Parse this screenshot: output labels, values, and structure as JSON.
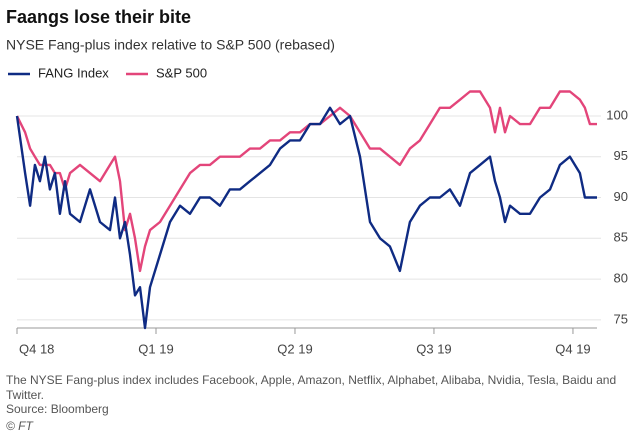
{
  "chart_data": {
    "type": "line",
    "title": "Faangs lose their bite",
    "subtitle": "NYSE Fang-plus index relative to S&P 500 (rebased)",
    "x": [
      0,
      0.058,
      0.094,
      0.129,
      0.165,
      0.201,
      0.237,
      0.273,
      0.309,
      0.345,
      0.381,
      0.453,
      0.525,
      0.597,
      0.669,
      0.705,
      0.741,
      0.777,
      0.813,
      0.849,
      0.885,
      0.921,
      0.957,
      1.029,
      1.101,
      1.173,
      1.245,
      1.317,
      1.388,
      1.46,
      1.532,
      1.604,
      1.676,
      1.748,
      1.82,
      1.892,
      1.964,
      2.036,
      2.108,
      2.18,
      2.252,
      2.324,
      2.396,
      2.468,
      2.54,
      2.612,
      2.683,
      2.755,
      2.827,
      2.899,
      2.971,
      3.043,
      3.115,
      3.187,
      3.259,
      3.331,
      3.403,
      3.439,
      3.475,
      3.511,
      3.547,
      3.619,
      3.691,
      3.763,
      3.835,
      3.906,
      3.978,
      4.05,
      4.086,
      4.122,
      4.173
    ],
    "series": [
      {
        "name": "FANG Index",
        "color": "#0f2b83",
        "values": [
          100,
          93,
          89,
          94,
          92,
          95,
          91,
          93,
          88,
          92,
          88,
          87,
          91,
          87,
          86,
          90,
          85,
          87,
          83,
          78,
          79,
          74,
          79,
          83,
          87,
          89,
          88,
          90,
          90,
          89,
          91,
          91,
          92,
          93,
          94,
          96,
          97,
          97,
          99,
          99,
          101,
          99,
          100,
          95,
          87,
          85,
          84,
          81,
          87,
          89,
          90,
          90,
          91,
          89,
          93,
          94,
          95,
          92,
          90,
          87,
          89,
          88,
          88,
          90,
          91,
          94,
          95,
          93,
          90,
          90,
          90
        ]
      },
      {
        "name": "S&P 500",
        "color": "#e3457a",
        "values": [
          100,
          98,
          96,
          95,
          94,
          94,
          94,
          93,
          93,
          91,
          93,
          94,
          93,
          92,
          94,
          95,
          92,
          86,
          88,
          85,
          81,
          84,
          86,
          87,
          89,
          91,
          93,
          94,
          94,
          95,
          95,
          95,
          96,
          96,
          97,
          97,
          98,
          98,
          99,
          99,
          100,
          101,
          100,
          98,
          96,
          96,
          95,
          94,
          96,
          97,
          99,
          101,
          101,
          102,
          103,
          103,
          101,
          98,
          101,
          98,
          100,
          99,
          99,
          101,
          101,
          103,
          103,
          102,
          101,
          99,
          99
        ]
      }
    ],
    "xlim": [
      0,
      4.173
    ],
    "xticks": [
      {
        "value": 0,
        "label": "Q4 18"
      },
      {
        "value": 1,
        "label": "Q1 19"
      },
      {
        "value": 2,
        "label": "Q2 19"
      },
      {
        "value": 3,
        "label": "Q3 19"
      },
      {
        "value": 4,
        "label": "Q4 19"
      }
    ],
    "ylim": [
      74,
      103
    ],
    "yticks": [
      75,
      80,
      85,
      90,
      95,
      100
    ],
    "grid": true,
    "note": "The NYSE Fang-plus index includes Facebook, Apple, Amazon, Netflix, Alphabet, Alibaba, Nvidia, Tesla, Baidu and Twitter.",
    "source": "Source: Bloomberg",
    "credit": "© FT"
  }
}
